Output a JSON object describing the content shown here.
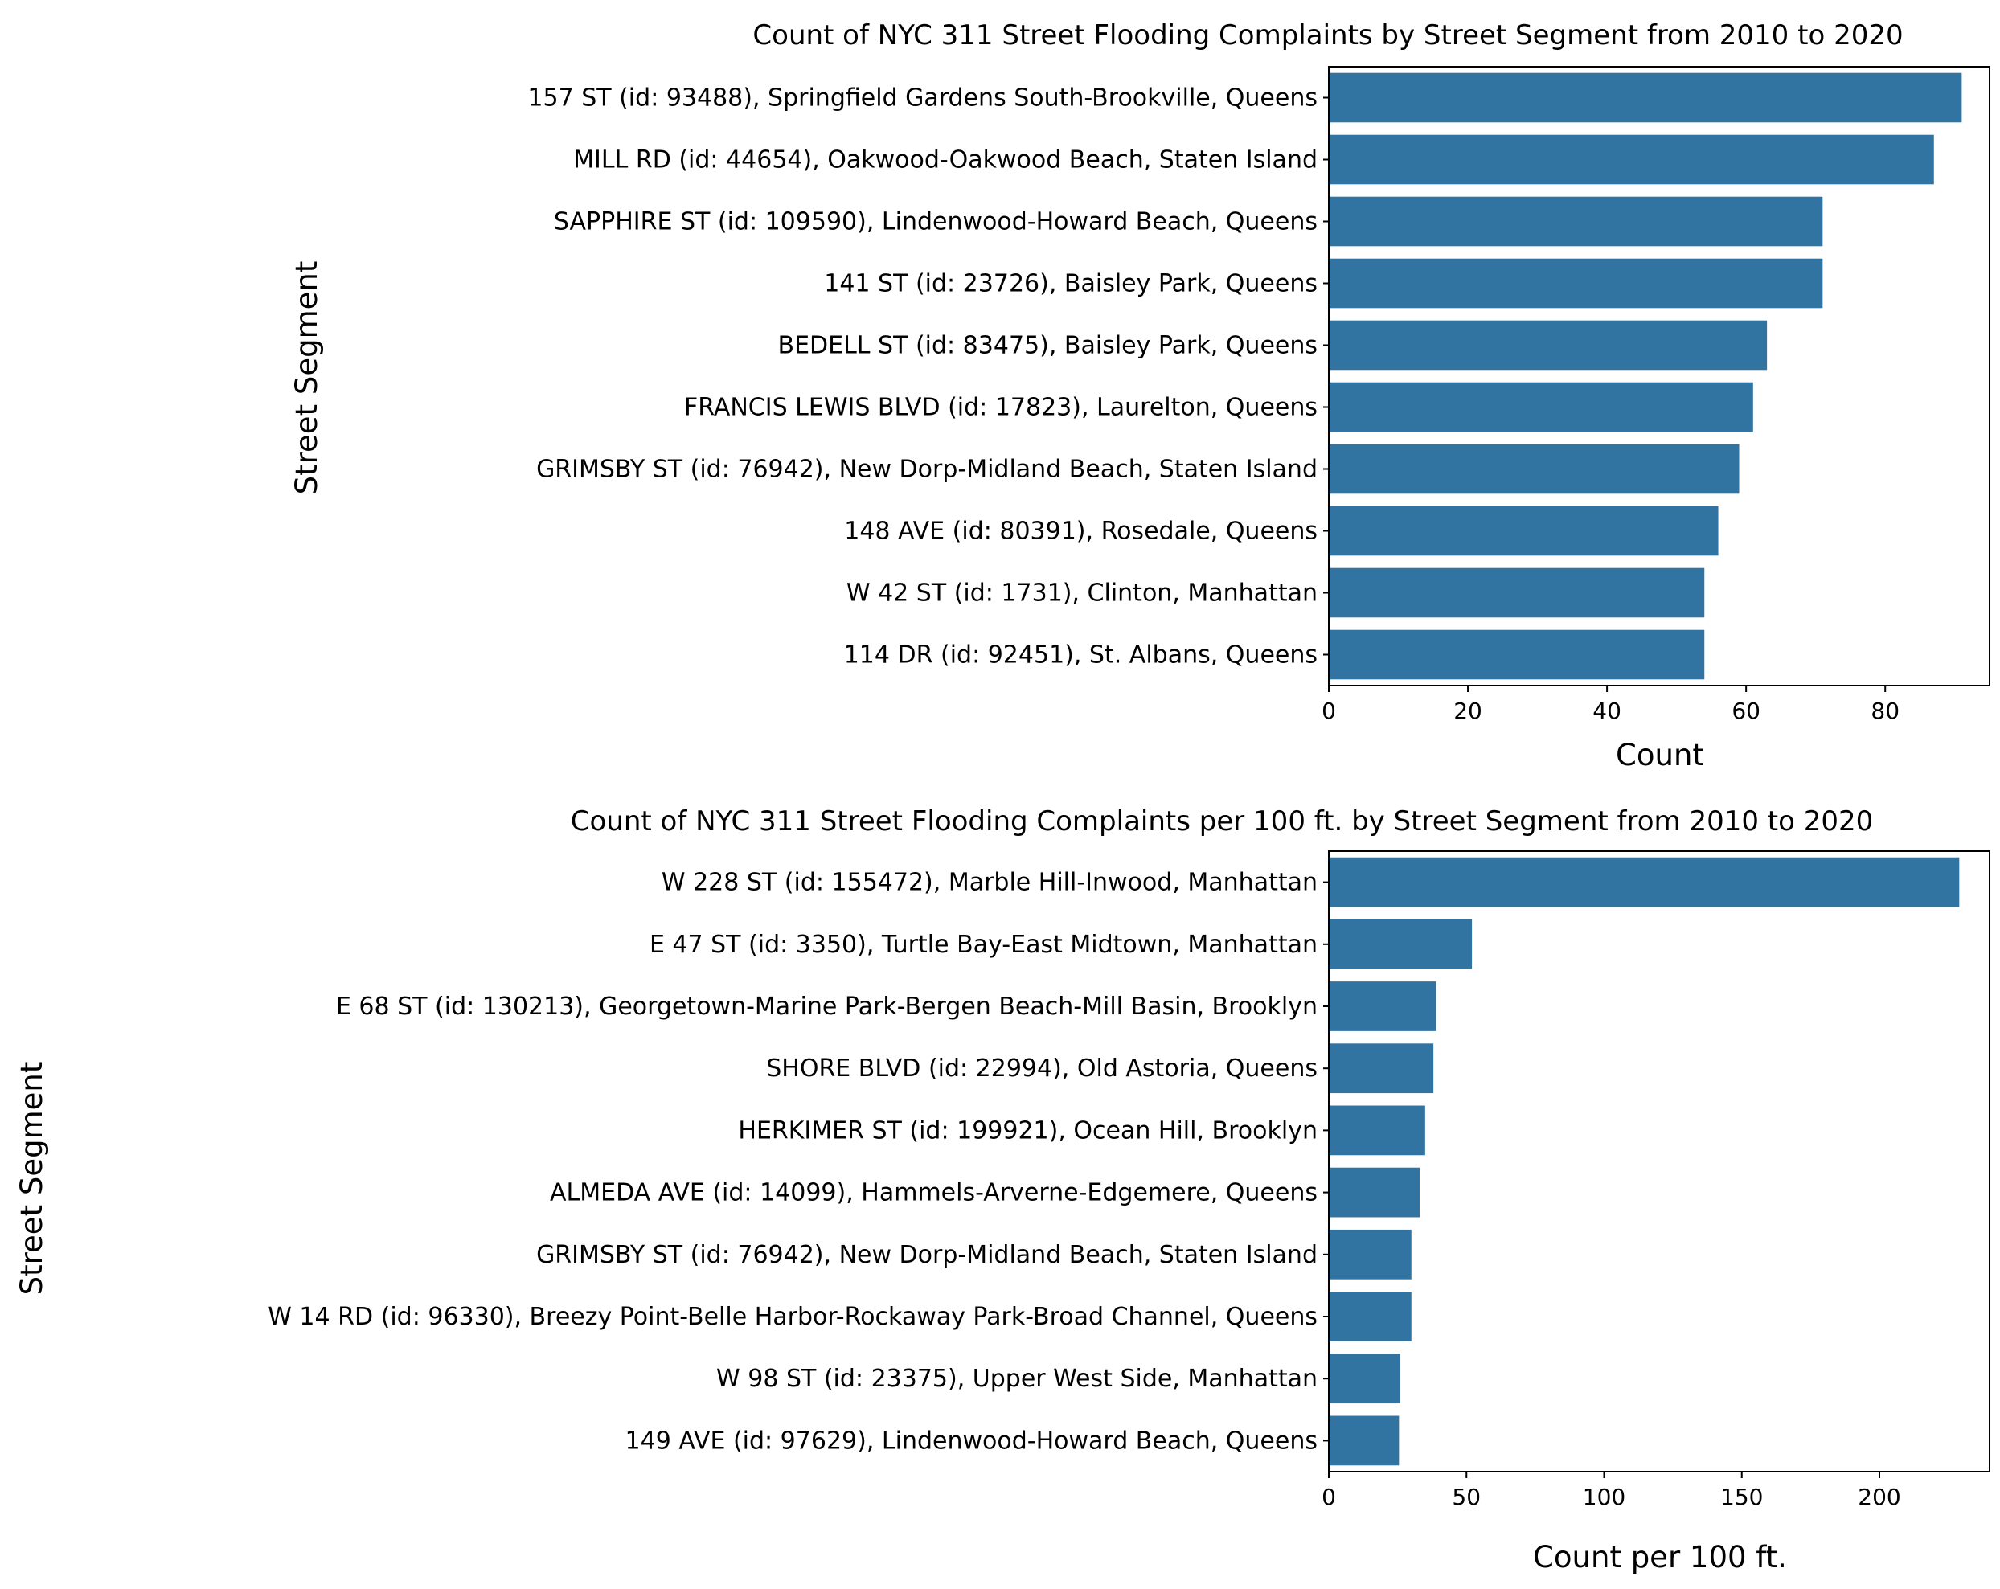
{
  "bar_color": "#3274a1",
  "chart_data": [
    {
      "type": "bar",
      "orientation": "horizontal",
      "title": "Count of NYC 311 Street Flooding Complaints by Street Segment from 2010 to 2020",
      "xlabel": "Count",
      "ylabel": "Street Segment",
      "xlim": [
        0,
        95
      ],
      "xticks": [
        0,
        20,
        40,
        60,
        80
      ],
      "grid": false,
      "categories": [
        "157 ST (id: 93488), Springfield Gardens South-Brookville, Queens",
        "MILL RD (id: 44654), Oakwood-Oakwood Beach, Staten Island",
        "SAPPHIRE ST (id: 109590), Lindenwood-Howard Beach, Queens",
        "141 ST (id: 23726), Baisley Park, Queens",
        "BEDELL ST (id: 83475), Baisley Park, Queens",
        "FRANCIS LEWIS BLVD (id: 17823), Laurelton, Queens",
        "GRIMSBY ST (id: 76942), New Dorp-Midland Beach, Staten Island",
        "148 AVE (id: 80391), Rosedale, Queens",
        "W  42 ST (id: 1731), Clinton, Manhattan",
        "114 DR (id: 92451), St. Albans, Queens"
      ],
      "values": [
        91,
        87,
        71,
        71,
        63,
        61,
        59,
        56,
        54,
        54
      ]
    },
    {
      "type": "bar",
      "orientation": "horizontal",
      "title": "Count of NYC 311 Street Flooding Complaints per 100 ft. by Street Segment from 2010 to 2020",
      "xlabel": "Count per 100 ft.",
      "ylabel": "Street Segment",
      "xlim": [
        0,
        240
      ],
      "xticks": [
        0,
        50,
        100,
        150,
        200
      ],
      "grid": false,
      "categories": [
        "W  228 ST (id: 155472), Marble Hill-Inwood, Manhattan",
        "E  47 ST (id: 3350), Turtle Bay-East Midtown, Manhattan",
        "E  68 ST (id: 130213), Georgetown-Marine Park-Bergen Beach-Mill Basin, Brooklyn",
        "SHORE BLVD (id: 22994), Old Astoria, Queens",
        "HERKIMER ST (id: 199921), Ocean Hill, Brooklyn",
        "ALMEDA AVE (id: 14099), Hammels-Arverne-Edgemere, Queens",
        "GRIMSBY ST (id: 76942), New Dorp-Midland Beach, Staten Island",
        "W  14 RD (id: 96330), Breezy Point-Belle Harbor-Rockaway Park-Broad Channel, Queens",
        "W  98 ST (id: 23375), Upper West Side, Manhattan",
        "149 AVE (id: 97629), Lindenwood-Howard Beach, Queens"
      ],
      "values": [
        229,
        52,
        39,
        38,
        35,
        33,
        30,
        30,
        26,
        25.5
      ]
    }
  ]
}
